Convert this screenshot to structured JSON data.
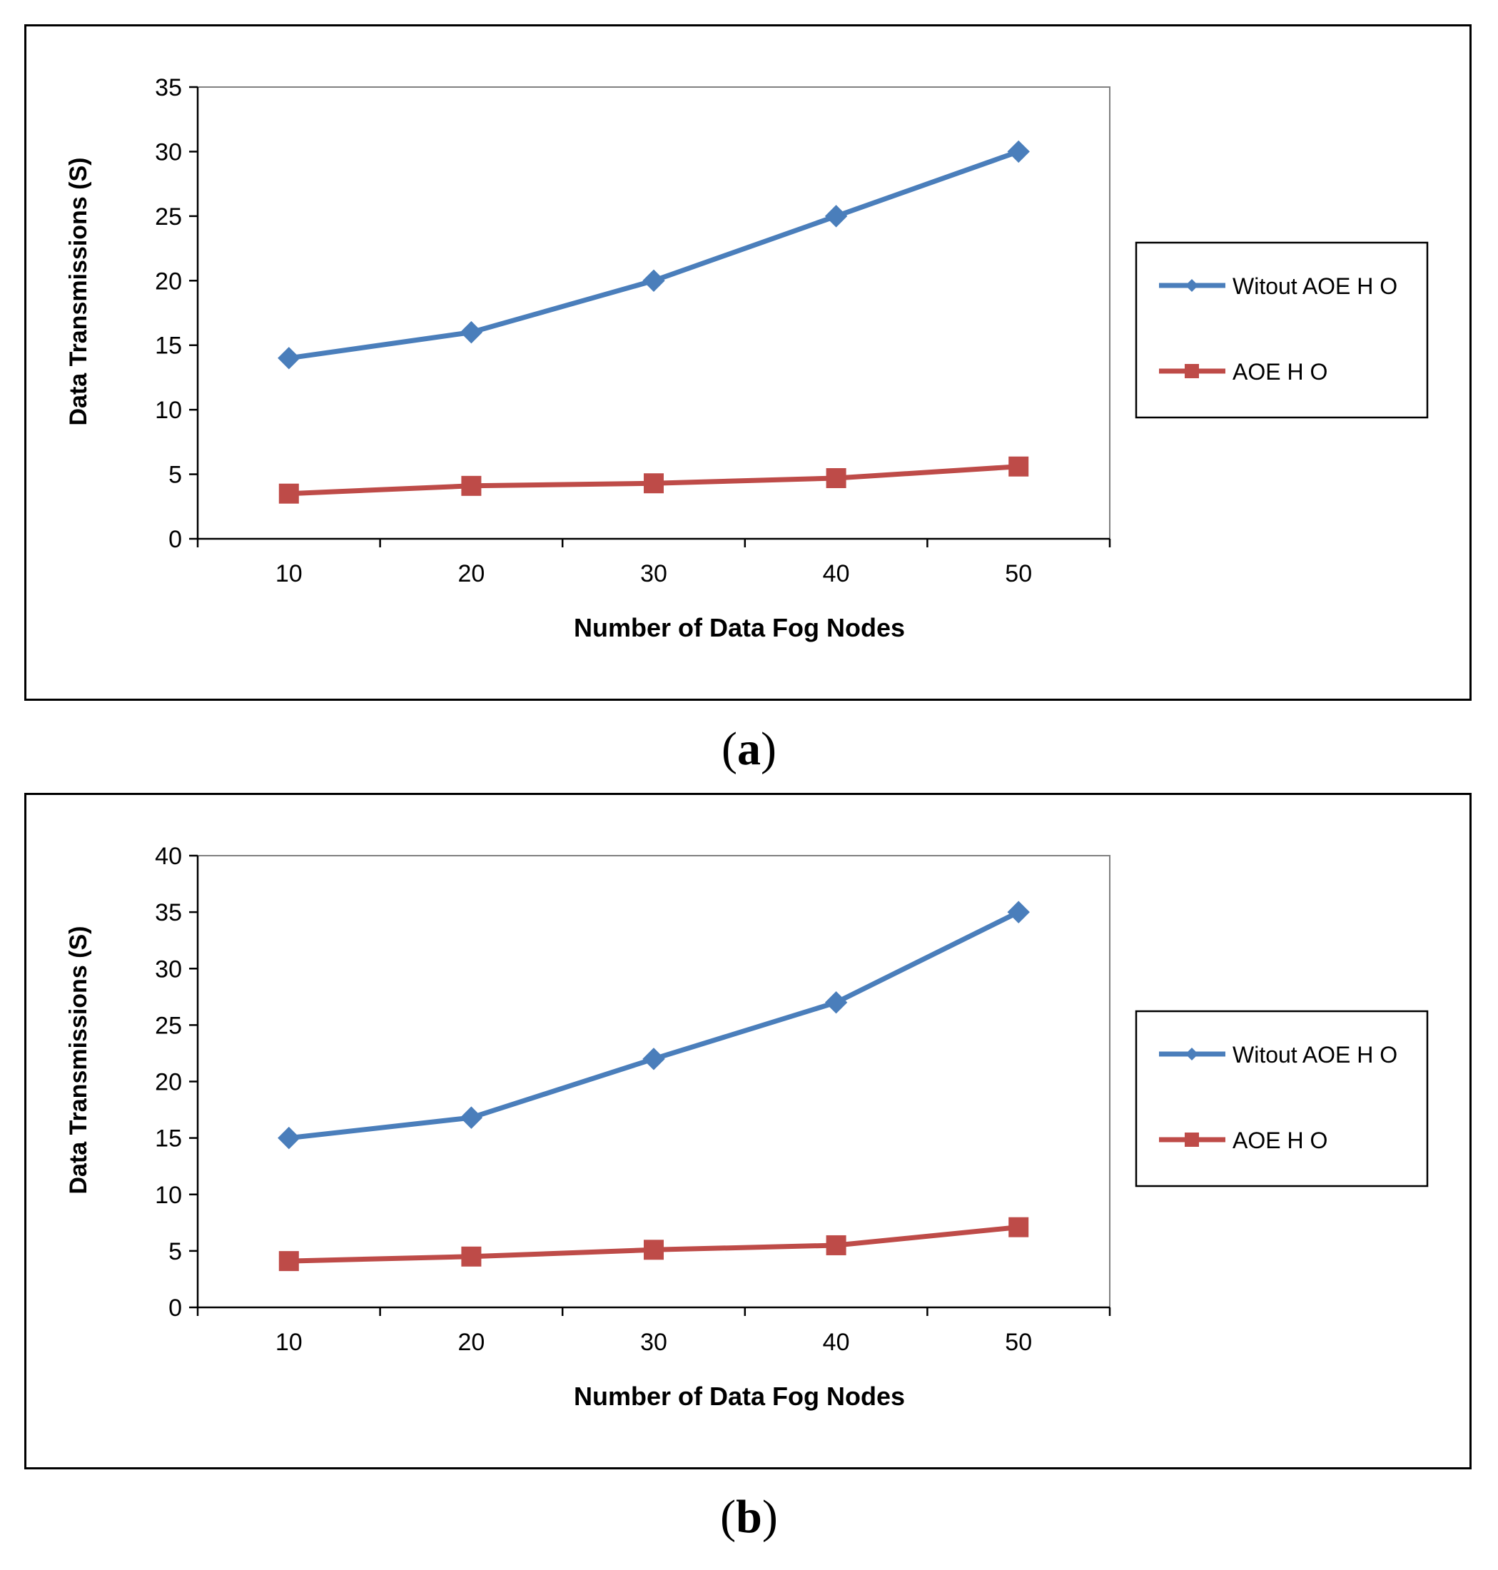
{
  "chart_data": [
    {
      "type": "line",
      "panel_label": "a",
      "x": [
        10,
        20,
        30,
        40,
        50
      ],
      "categories": [
        "10",
        "20",
        "30",
        "40",
        "50"
      ],
      "xlabel": "Number of Data Fog Nodes",
      "ylabel": "Data Transmissions  (S)",
      "ylim": [
        0,
        35
      ],
      "yticks": [
        0,
        5,
        10,
        15,
        20,
        25,
        30,
        35
      ],
      "legend_position": "right",
      "series": [
        {
          "name": "Witout AOE H O",
          "color": "#4a7ebb",
          "marker": "diamond",
          "values": [
            14,
            16,
            20,
            25,
            30
          ]
        },
        {
          "name": "AOE H O",
          "color": "#be4b48",
          "marker": "square",
          "values": [
            3.5,
            4.1,
            4.3,
            4.7,
            5.6
          ]
        }
      ]
    },
    {
      "type": "line",
      "panel_label": "b",
      "x": [
        10,
        20,
        30,
        40,
        50
      ],
      "categories": [
        "10",
        "20",
        "30",
        "40",
        "50"
      ],
      "xlabel": "Number of Data Fog Nodes",
      "ylabel": "Data Transmissions  (S)",
      "ylim": [
        0,
        40
      ],
      "yticks": [
        0,
        5,
        10,
        15,
        20,
        25,
        30,
        35,
        40
      ],
      "legend_position": "right",
      "series": [
        {
          "name": "Witout AOE H O",
          "color": "#4a7ebb",
          "marker": "diamond",
          "values": [
            15,
            16.8,
            22,
            27,
            35
          ]
        },
        {
          "name": "AOE H O",
          "color": "#be4b48",
          "marker": "square",
          "values": [
            4.1,
            4.5,
            5.1,
            5.5,
            7.1
          ]
        }
      ]
    }
  ]
}
